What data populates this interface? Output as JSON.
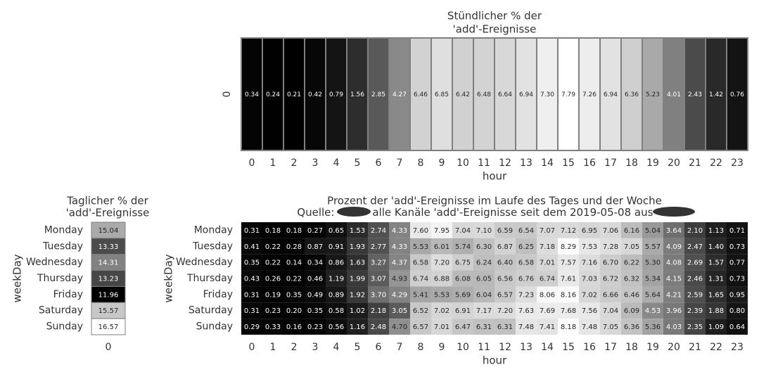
{
  "colors": {
    "low": "#000000",
    "high": "#ffffff",
    "text": "#333333",
    "redaction": "#333333"
  },
  "chart_data": [
    {
      "id": "hourly",
      "type": "heatmap",
      "title": "Stündlicher % der\n'add'-Ereignisse",
      "xlabel": "hour",
      "ylabel": "",
      "x": [
        "0",
        "1",
        "2",
        "3",
        "4",
        "5",
        "6",
        "7",
        "8",
        "9",
        "10",
        "11",
        "12",
        "13",
        "14",
        "15",
        "16",
        "17",
        "18",
        "19",
        "20",
        "21",
        "22",
        "23"
      ],
      "y": [
        "0"
      ],
      "values": [
        [
          0.34,
          0.24,
          0.21,
          0.42,
          0.79,
          1.56,
          2.85,
          4.27,
          6.46,
          6.85,
          6.42,
          6.48,
          6.64,
          6.94,
          7.3,
          7.79,
          7.26,
          6.94,
          6.36,
          5.23,
          4.01,
          2.43,
          1.42,
          0.76
        ]
      ]
    },
    {
      "id": "daily",
      "type": "heatmap",
      "title": "Taglicher % der\n'add'-Ereignisse",
      "xlabel": "",
      "ylabel": "weekDay",
      "x": [
        "0"
      ],
      "y": [
        "Monday",
        "Tuesday",
        "Wednesday",
        "Thursday",
        "Friday",
        "Saturday",
        "Sunday"
      ],
      "values": [
        [
          15.04
        ],
        [
          13.33
        ],
        [
          14.31
        ],
        [
          13.23
        ],
        [
          11.96
        ],
        [
          15.57
        ],
        [
          16.57
        ]
      ]
    },
    {
      "id": "weekly",
      "type": "heatmap",
      "title": "Prozent der 'add'-Ereignisse im Laufe des Tages und der Woche",
      "subtitle_parts": [
        "Quelle: ",
        "alle Kanäle 'add'-Ereignisse seit dem 2019-05-08 aus "
      ],
      "xlabel": "hour",
      "ylabel": "weekDay",
      "x": [
        "0",
        "1",
        "2",
        "3",
        "4",
        "5",
        "6",
        "7",
        "8",
        "9",
        "10",
        "11",
        "12",
        "13",
        "14",
        "15",
        "16",
        "17",
        "18",
        "19",
        "20",
        "21",
        "22",
        "23"
      ],
      "y": [
        "Monday",
        "Tuesday",
        "Wednesday",
        "Thursday",
        "Friday",
        "Saturday",
        "Sunday"
      ],
      "values": [
        [
          0.31,
          0.18,
          0.18,
          0.27,
          0.65,
          1.53,
          2.74,
          4.33,
          7.6,
          7.95,
          7.04,
          7.1,
          6.59,
          6.54,
          7.07,
          7.12,
          6.95,
          7.06,
          6.16,
          5.04,
          3.64,
          2.1,
          1.13,
          0.71
        ],
        [
          0.41,
          0.22,
          0.28,
          0.87,
          0.91,
          1.93,
          2.77,
          4.33,
          5.53,
          6.01,
          5.74,
          6.3,
          6.87,
          6.25,
          7.18,
          8.29,
          7.53,
          7.28,
          7.05,
          5.57,
          4.09,
          2.47,
          1.4,
          0.73
        ],
        [
          0.35,
          0.22,
          0.14,
          0.34,
          0.86,
          1.63,
          3.27,
          4.37,
          6.58,
          7.2,
          6.75,
          6.24,
          6.4,
          6.58,
          7.01,
          7.57,
          7.16,
          6.7,
          6.22,
          5.3,
          4.08,
          2.69,
          1.57,
          0.77
        ],
        [
          0.43,
          0.26,
          0.22,
          0.46,
          1.19,
          1.99,
          3.07,
          4.93,
          6.74,
          6.88,
          6.08,
          6.05,
          6.56,
          6.76,
          6.74,
          7.61,
          7.03,
          6.72,
          6.32,
          5.34,
          4.15,
          2.46,
          1.31,
          0.73
        ],
        [
          0.31,
          0.19,
          0.35,
          0.49,
          0.89,
          1.92,
          3.7,
          4.29,
          5.41,
          5.53,
          5.69,
          6.04,
          6.57,
          7.23,
          8.06,
          8.16,
          7.02,
          6.66,
          6.46,
          5.64,
          4.21,
          2.59,
          1.65,
          0.95
        ],
        [
          0.31,
          0.23,
          0.2,
          0.35,
          0.58,
          1.02,
          2.18,
          3.05,
          6.52,
          7.02,
          6.91,
          7.17,
          7.2,
          7.63,
          7.69,
          7.68,
          7.56,
          7.04,
          6.09,
          4.53,
          3.96,
          2.39,
          1.88,
          0.8
        ],
        [
          0.29,
          0.33,
          0.16,
          0.23,
          0.56,
          1.16,
          2.48,
          4.7,
          6.57,
          7.01,
          6.47,
          6.31,
          6.31,
          7.48,
          7.41,
          8.18,
          7.48,
          7.05,
          6.36,
          5.36,
          4.03,
          2.35,
          1.09,
          0.64
        ]
      ]
    }
  ]
}
